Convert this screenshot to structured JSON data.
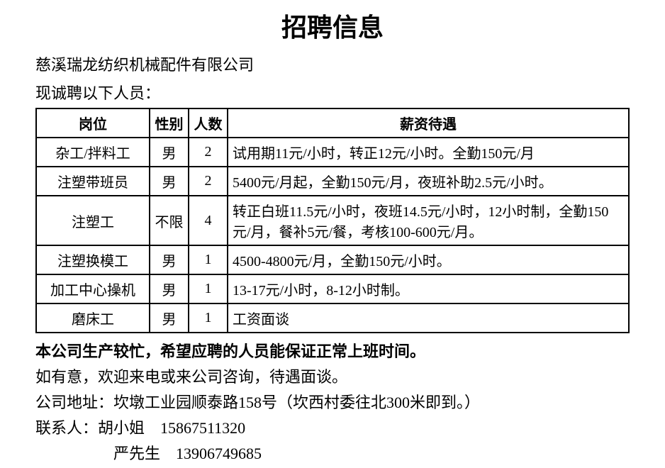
{
  "title": "招聘信息",
  "company": "慈溪瑞龙纺织机械配件有限公司",
  "intro": "现诚聘以下人员：",
  "table": {
    "headers": {
      "position": "岗位",
      "gender": "性别",
      "count": "人数",
      "salary": "薪资待遇"
    },
    "rows": [
      {
        "position": "杂工/拌料工",
        "gender": "男",
        "count": "2",
        "salary": "试用期11元/小时，转正12元/小时。全勤150元/月"
      },
      {
        "position": "注塑带班员",
        "gender": "男",
        "count": "2",
        "salary": "5400元/月起，全勤150元/月，夜班补助2.5元/小时。"
      },
      {
        "position": "注塑工",
        "gender": "不限",
        "count": "4",
        "salary": "转正白班11.5元/小时，夜班14.5元/小时，12小时制，全勤150元/月，餐补5元/餐，考核100-600元/月。"
      },
      {
        "position": "注塑换模工",
        "gender": "男",
        "count": "1",
        "salary": "4500-4800元/月，全勤150元/小时。"
      },
      {
        "position": "加工中心操机",
        "gender": "男",
        "count": "1",
        "salary": "13-17元/小时，8-12小时制。"
      },
      {
        "position": "磨床工",
        "gender": "男",
        "count": "1",
        "salary": "工资面谈"
      }
    ]
  },
  "note_bold": "本公司生产较忙，希望应聘的人员能保证正常上班时间。",
  "note_contact": "如有意，欢迎来电或来公司咨询，待遇面谈。",
  "address": "公司地址：坎墩工业园顺泰路158号（坎西村委往北300米即到。）",
  "contact1": "联系人：胡小姐　15867511320",
  "contact2": "严先生　13906749685",
  "styles": {
    "title_fontsize": 36,
    "body_fontsize": 22,
    "table_fontsize": 20,
    "text_color": "#000000",
    "background_color": "#ffffff",
    "border_color": "#000000",
    "border_width": 2,
    "font_family": "SimSun"
  }
}
